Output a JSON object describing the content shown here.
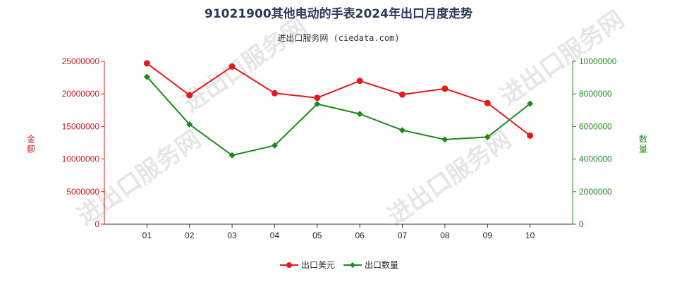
{
  "title": "91021900其他电动的手表2024年出口月度走势",
  "subtitle": "进出口服务网 (ciedata.com)",
  "watermark": "进出口服务网",
  "chart_data": {
    "type": "line",
    "categories": [
      "01",
      "02",
      "03",
      "04",
      "05",
      "06",
      "07",
      "08",
      "09",
      "10"
    ],
    "y_left": {
      "label": "金额",
      "range": [
        0,
        25000000
      ],
      "ticks": [
        "0",
        "5000000",
        "10000000",
        "15000000",
        "20000000",
        "25000000"
      ],
      "color": "#cc1f1f"
    },
    "y_right": {
      "label": "数量",
      "range": [
        0,
        10000000
      ],
      "ticks": [
        "0",
        "2000000",
        "4000000",
        "6000000",
        "8000000",
        "10000000"
      ],
      "color": "#1f8a1f"
    },
    "series": [
      {
        "name": "出口美元",
        "axis": "left",
        "marker": "circle",
        "color": "#e31a1a",
        "values": [
          24700000,
          19800000,
          24200000,
          20100000,
          19400000,
          22000000,
          19900000,
          20800000,
          18600000,
          13600000
        ]
      },
      {
        "name": "出口数量",
        "axis": "right",
        "marker": "diamond",
        "color": "#1a8a1a",
        "values": [
          9050000,
          6130000,
          4230000,
          4830000,
          7380000,
          6770000,
          5770000,
          5200000,
          5350000,
          7400000
        ]
      }
    ],
    "grid": false,
    "legend": "bottom-center"
  }
}
